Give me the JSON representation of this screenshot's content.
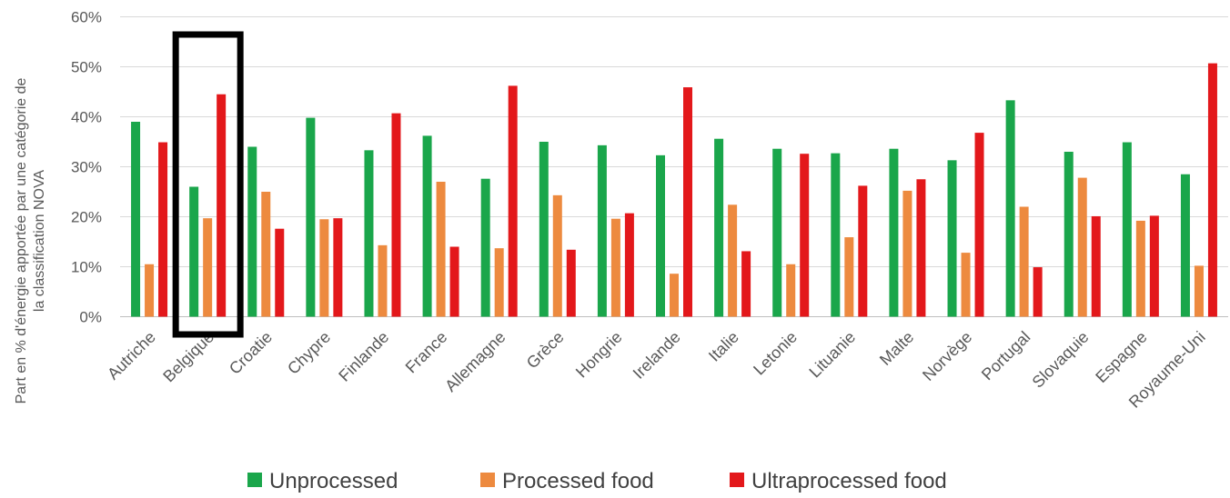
{
  "chart_data": {
    "type": "bar",
    "ylabel_lines": [
      "Part en % d'énergie apportée par une catégorie de",
      "la classification NOVA"
    ],
    "ylim": [
      0,
      60
    ],
    "yticks": [
      "0%",
      "10%",
      "20%",
      "30%",
      "40%",
      "50%",
      "60%"
    ],
    "grid": true,
    "legend_position": "bottom",
    "highlighted_category": "Belgique",
    "categories": [
      "Autriche",
      "Belgique",
      "Croatie",
      "Chypre",
      "Finlande",
      "France",
      "Allemagne",
      "Grèce",
      "Hongrie",
      "Irelande",
      "Italie",
      "Letonie",
      "Lituanie",
      "Malte",
      "Norvège",
      "Portugal",
      "Slovaquie",
      "Espagne",
      "Royaume-Uni"
    ],
    "series": [
      {
        "name": "Unprocessed",
        "color": "#1aa64b",
        "values": [
          39,
          26,
          34,
          39.8,
          33.3,
          36.2,
          27.6,
          35,
          34.3,
          32.3,
          35.6,
          33.6,
          32.7,
          33.6,
          31.3,
          43.3,
          33,
          34.9,
          28.5
        ]
      },
      {
        "name": "Processed food",
        "color": "#ed8a3f",
        "values": [
          10.5,
          19.7,
          25,
          19.5,
          14.3,
          27,
          13.7,
          24.3,
          19.6,
          8.6,
          22.4,
          10.5,
          15.9,
          25.2,
          12.8,
          22,
          27.8,
          19.2,
          10.2
        ]
      },
      {
        "name": "Ultraprocessed food",
        "color": "#e3181b",
        "values": [
          34.9,
          44.5,
          17.6,
          19.7,
          40.7,
          14,
          46.2,
          13.4,
          20.7,
          45.9,
          13.1,
          32.6,
          26.2,
          27.5,
          36.8,
          9.9,
          20.1,
          20.2,
          50.7
        ]
      }
    ]
  }
}
